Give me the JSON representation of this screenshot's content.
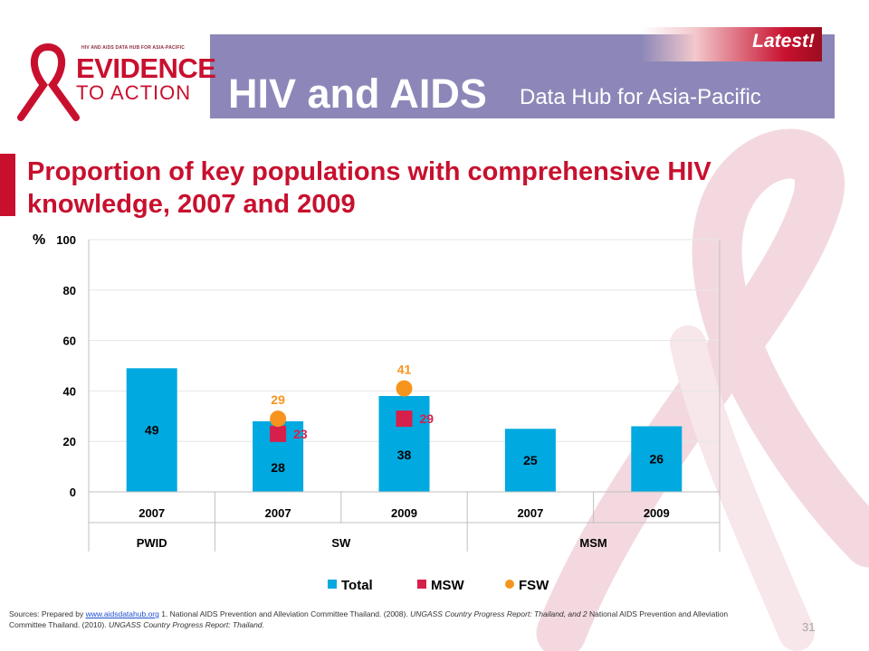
{
  "header": {
    "logo_small": "HIV AND AIDS DATA HUB FOR ASIA-PACIFIC",
    "logo_evidence": "EVIDENCE",
    "logo_action": "TO ACTION",
    "title": "HIV and AIDS",
    "subtitle": "Data Hub for Asia-Pacific",
    "latest": "Latest!"
  },
  "colors": {
    "total": "#00a9e0",
    "msw": "#d6204b",
    "fsw": "#f7941d",
    "title": "#c8102e",
    "header": "#8c87b8"
  },
  "chart_data": {
    "type": "bar",
    "title": "Proportion of key populations with comprehensive HIV knowledge, 2007 and 2009",
    "ylabel": "%",
    "ylim": [
      0,
      100
    ],
    "yticks": [
      0,
      20,
      40,
      60,
      80,
      100
    ],
    "grid": true,
    "legend_position": "bottom",
    "categories": [
      "2007",
      "2007",
      "2009",
      "2007",
      "2009"
    ],
    "groups": [
      {
        "label": "PWID",
        "span": 1
      },
      {
        "label": "SW",
        "span": 2
      },
      {
        "label": "MSM",
        "span": 2
      }
    ],
    "series": [
      {
        "name": "Total",
        "type": "bar",
        "values": [
          49,
          28,
          38,
          25,
          26
        ]
      },
      {
        "name": "MSW",
        "type": "square",
        "values": [
          null,
          23,
          29,
          null,
          null
        ]
      },
      {
        "name": "FSW",
        "type": "circle",
        "values": [
          null,
          29,
          41,
          null,
          null
        ]
      }
    ]
  },
  "footer": {
    "prefix": "Sources: Prepared by ",
    "link": "www.aidsdatahub.org",
    "text1": " 1. National AIDS Prevention and Alleviation Committee Thailand. (2008). ",
    "italic1": "UNGASS Country Progress Report: Thailand, and 2",
    "text2": " National AIDS Prevention and Alleviation Committee Thailand. (2010). ",
    "italic2": "UNGASS Country Progress Report: Thailand."
  },
  "page_number": "31"
}
